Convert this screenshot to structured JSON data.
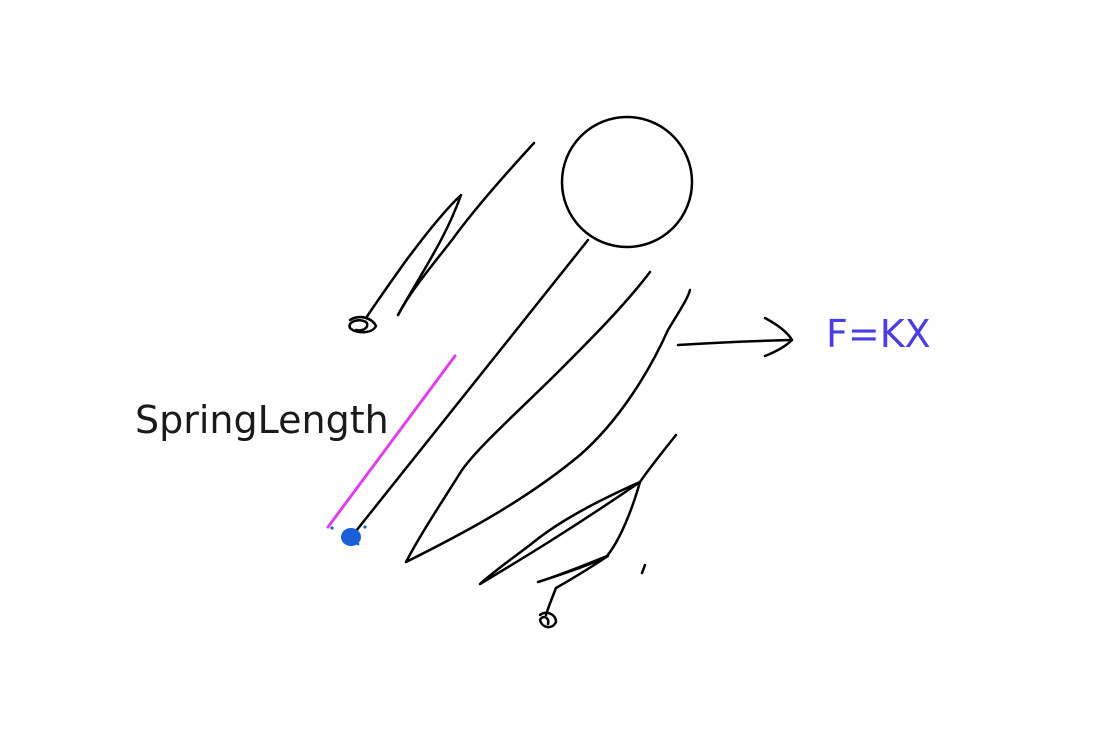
{
  "labels": {
    "spring_length": "SpringLength",
    "force_formula": "F=KX"
  },
  "colors": {
    "ink": "#000000",
    "spring_length_marker": "#e040e8",
    "anchor_point": "#1a5fd6",
    "force_formula": "#4a3ee0"
  },
  "icons": {
    "ball": "circle-mass",
    "force_arrow": "arrow-right",
    "anchor": "dot-anchor"
  }
}
